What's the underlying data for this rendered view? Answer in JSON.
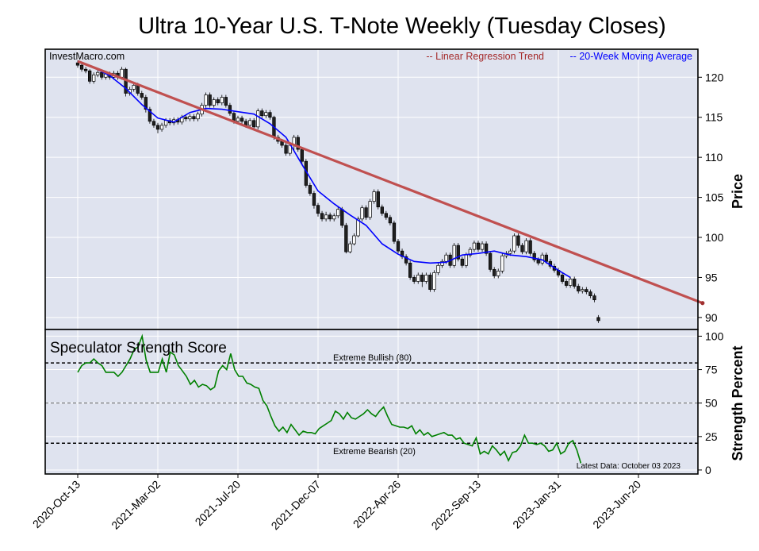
{
  "chart_data": [
    {
      "type": "candlestick",
      "title": "Ultra 10-Year U.S. T-Note Weekly (Tuesday Closes)",
      "watermark": "InvestMacro.com",
      "ylabel": "Price",
      "ylim": [
        88.5,
        123.5
      ],
      "yticks": [
        90,
        95,
        100,
        105,
        110,
        115,
        120
      ],
      "grid": true,
      "x_dates": [
        "2020-Oct-13",
        "2021-Mar-02",
        "2021-Jul-20",
        "2021-Dec-07",
        "2022-Apr-26",
        "2022-Sep-13",
        "2023-Jan-31",
        "2023-Jun-20"
      ],
      "legend": [
        {
          "label": "-- Linear Regression Trend",
          "color": "#a52a2a"
        },
        {
          "label": "-- 20-Week Moving Average",
          "color": "#0000ff"
        }
      ],
      "regression_trend": {
        "start": {
          "week": 0,
          "value": 122.0
        },
        "end": {
          "week": 156,
          "value": 91.8
        }
      },
      "moving_average": [
        [
          0,
          122.0
        ],
        [
          4,
          121.2
        ],
        [
          8,
          120.2
        ],
        [
          12,
          118.6
        ],
        [
          16,
          116.6
        ],
        [
          20,
          114.9
        ],
        [
          24,
          114.4
        ],
        [
          28,
          115.6
        ],
        [
          32,
          116.1
        ],
        [
          36,
          116.0
        ],
        [
          40,
          115.7
        ],
        [
          44,
          115.4
        ],
        [
          48,
          114.2
        ],
        [
          52,
          112.5
        ],
        [
          56,
          109.1
        ],
        [
          60,
          105.8
        ],
        [
          64,
          104.2
        ],
        [
          68,
          102.8
        ],
        [
          72,
          101.5
        ],
        [
          76,
          99.2
        ],
        [
          80,
          97.9
        ],
        [
          84,
          97.0
        ],
        [
          88,
          96.8
        ],
        [
          92,
          96.9
        ],
        [
          96,
          97.8
        ],
        [
          100,
          98.0
        ],
        [
          104,
          98.3
        ],
        [
          108,
          97.8
        ],
        [
          112,
          97.6
        ],
        [
          116,
          97.2
        ],
        [
          120,
          95.9
        ],
        [
          123,
          95.0
        ]
      ],
      "candles": [
        [
          0,
          121.8,
          121.5,
          122.1,
          121.2
        ],
        [
          1,
          121.5,
          121.0,
          121.8,
          120.7
        ],
        [
          2,
          121.0,
          120.8,
          121.3,
          120.5
        ],
        [
          3,
          120.8,
          119.5,
          121.0,
          119.2
        ],
        [
          4,
          119.5,
          120.3,
          120.6,
          119.2
        ],
        [
          5,
          120.3,
          120.6,
          120.9,
          120.0
        ],
        [
          6,
          120.6,
          120.0,
          120.9,
          119.7
        ],
        [
          7,
          120.0,
          120.4,
          120.7,
          119.7
        ],
        [
          8,
          120.4,
          120.0,
          120.7,
          119.7
        ],
        [
          9,
          120.0,
          120.5,
          120.8,
          119.7
        ],
        [
          10,
          120.5,
          120.0,
          120.8,
          119.7
        ],
        [
          11,
          120.0,
          121.0,
          121.3,
          119.7
        ],
        [
          12,
          121.0,
          118.0,
          121.2,
          117.6
        ],
        [
          13,
          118.0,
          118.5,
          118.8,
          117.7
        ],
        [
          14,
          118.5,
          119.0,
          119.3,
          118.2
        ],
        [
          15,
          119.0,
          118.0,
          119.3,
          117.7
        ],
        [
          16,
          118.0,
          117.5,
          118.3,
          117.2
        ],
        [
          17,
          117.5,
          116.0,
          117.8,
          115.6
        ],
        [
          18,
          116.0,
          114.5,
          116.3,
          114.2
        ],
        [
          19,
          114.5,
          114.0,
          114.8,
          113.7
        ],
        [
          20,
          114.0,
          113.5,
          114.3,
          113.0
        ],
        [
          21,
          113.5,
          114.0,
          114.3,
          113.2
        ],
        [
          22,
          114.0,
          114.6,
          114.9,
          113.7
        ],
        [
          23,
          114.6,
          114.3,
          114.9,
          114.0
        ],
        [
          24,
          114.3,
          114.7,
          115.0,
          114.0
        ],
        [
          25,
          114.7,
          114.4,
          115.0,
          114.1
        ],
        [
          26,
          114.4,
          115.0,
          115.3,
          114.1
        ],
        [
          27,
          115.0,
          114.8,
          115.3,
          114.5
        ],
        [
          28,
          114.8,
          115.1,
          115.4,
          114.5
        ],
        [
          29,
          115.1,
          114.8,
          115.4,
          114.5
        ],
        [
          30,
          114.8,
          115.4,
          115.7,
          114.5
        ],
        [
          31,
          115.4,
          116.5,
          116.8,
          115.1
        ],
        [
          32,
          116.5,
          117.8,
          118.1,
          116.2
        ],
        [
          33,
          117.8,
          116.5,
          118.1,
          116.2
        ],
        [
          34,
          116.5,
          117.2,
          117.5,
          116.2
        ],
        [
          35,
          117.2,
          116.8,
          117.5,
          116.5
        ],
        [
          36,
          116.8,
          117.5,
          117.8,
          116.5
        ],
        [
          37,
          117.5,
          116.5,
          117.8,
          116.2
        ],
        [
          38,
          116.5,
          115.5,
          116.8,
          115.2
        ],
        [
          39,
          115.5,
          114.5,
          115.8,
          114.2
        ],
        [
          40,
          114.5,
          114.9,
          115.2,
          114.2
        ],
        [
          41,
          114.9,
          114.5,
          115.2,
          114.2
        ],
        [
          42,
          114.5,
          114.0,
          114.8,
          113.7
        ],
        [
          43,
          114.0,
          114.6,
          114.9,
          113.7
        ],
        [
          44,
          114.6,
          113.8,
          114.9,
          113.5
        ],
        [
          45,
          113.8,
          115.8,
          116.1,
          113.5
        ],
        [
          46,
          115.8,
          115.2,
          116.1,
          114.9
        ],
        [
          47,
          115.2,
          115.6,
          115.9,
          114.9
        ],
        [
          48,
          115.6,
          115.0,
          115.9,
          114.7
        ],
        [
          49,
          115.0,
          112.5,
          115.2,
          112.2
        ],
        [
          50,
          112.5,
          112.0,
          112.8,
          111.7
        ],
        [
          51,
          112.0,
          111.5,
          112.3,
          111.2
        ],
        [
          52,
          111.5,
          110.5,
          111.8,
          110.2
        ],
        [
          53,
          110.5,
          111.5,
          111.8,
          110.2
        ],
        [
          54,
          111.5,
          112.5,
          112.8,
          110.8
        ],
        [
          55,
          112.5,
          111.0,
          112.8,
          110.7
        ],
        [
          56,
          111.0,
          109.5,
          111.3,
          109.0
        ],
        [
          57,
          109.5,
          106.5,
          109.8,
          106.2
        ],
        [
          58,
          106.5,
          105.5,
          106.8,
          105.2
        ],
        [
          59,
          105.5,
          104.0,
          105.8,
          103.6
        ],
        [
          60,
          104.0,
          103.0,
          104.3,
          102.6
        ],
        [
          61,
          103.0,
          102.3,
          103.3,
          102.0
        ],
        [
          62,
          102.3,
          102.8,
          103.2,
          102.0
        ],
        [
          63,
          102.8,
          102.3,
          103.1,
          102.0
        ],
        [
          64,
          102.3,
          102.7,
          103.0,
          102.0
        ],
        [
          65,
          102.7,
          103.5,
          103.8,
          102.4
        ],
        [
          66,
          103.5,
          101.5,
          103.8,
          101.2
        ],
        [
          67,
          101.5,
          98.2,
          101.8,
          98.0
        ],
        [
          68,
          98.2,
          99.2,
          99.5,
          98.0
        ],
        [
          69,
          99.2,
          100.2,
          100.5,
          99.0
        ],
        [
          70,
          100.2,
          102.3,
          102.6,
          100.0
        ],
        [
          71,
          102.3,
          103.7,
          104.0,
          102.0
        ],
        [
          72,
          103.7,
          102.5,
          104.0,
          102.2
        ],
        [
          73,
          102.5,
          104.5,
          104.8,
          102.2
        ],
        [
          74,
          104.5,
          105.7,
          106.0,
          104.2
        ],
        [
          75,
          105.7,
          103.8,
          106.0,
          103.5
        ],
        [
          76,
          103.8,
          103.0,
          104.1,
          102.7
        ],
        [
          77,
          103.0,
          102.5,
          103.3,
          102.2
        ],
        [
          78,
          102.5,
          101.8,
          102.8,
          101.5
        ],
        [
          79,
          101.8,
          99.5,
          102.1,
          99.2
        ],
        [
          80,
          99.5,
          98.3,
          99.8,
          98.0
        ],
        [
          81,
          98.3,
          97.6,
          98.6,
          97.3
        ],
        [
          82,
          97.6,
          96.8,
          97.9,
          96.5
        ],
        [
          83,
          96.8,
          95.0,
          97.1,
          94.7
        ],
        [
          84,
          95.0,
          94.5,
          95.3,
          94.2
        ],
        [
          85,
          94.5,
          95.3,
          95.6,
          94.2
        ],
        [
          86,
          95.3,
          94.5,
          95.6,
          93.8
        ],
        [
          87,
          94.5,
          95.3,
          95.6,
          94.2
        ],
        [
          88,
          95.3,
          93.5,
          95.6,
          93.2
        ],
        [
          89,
          93.5,
          95.6,
          95.9,
          93.2
        ],
        [
          90,
          95.6,
          96.5,
          96.8,
          95.3
        ],
        [
          91,
          96.5,
          97.0,
          97.3,
          96.2
        ],
        [
          92,
          97.0,
          97.8,
          98.1,
          96.7
        ],
        [
          93,
          97.8,
          96.5,
          98.1,
          96.2
        ],
        [
          94,
          96.5,
          99.0,
          99.3,
          96.2
        ],
        [
          95,
          99.0,
          97.3,
          99.3,
          97.0
        ],
        [
          96,
          97.3,
          96.5,
          97.6,
          96.2
        ],
        [
          97,
          96.5,
          97.8,
          98.1,
          96.2
        ],
        [
          98,
          97.8,
          98.5,
          98.8,
          97.5
        ],
        [
          99,
          98.5,
          99.3,
          99.6,
          98.2
        ],
        [
          100,
          99.3,
          98.5,
          99.6,
          98.2
        ],
        [
          101,
          98.5,
          99.2,
          99.5,
          98.2
        ],
        [
          102,
          99.2,
          98.0,
          99.5,
          97.7
        ],
        [
          103,
          98.0,
          96.0,
          98.3,
          95.7
        ],
        [
          104,
          96.0,
          95.2,
          96.3,
          94.9
        ],
        [
          105,
          95.2,
          95.8,
          96.1,
          94.9
        ],
        [
          106,
          95.8,
          97.7,
          98.0,
          95.5
        ],
        [
          107,
          97.7,
          98.0,
          98.3,
          97.4
        ],
        [
          108,
          98.0,
          98.3,
          98.6,
          97.7
        ],
        [
          109,
          98.3,
          100.2,
          100.5,
          98.0
        ],
        [
          110,
          100.2,
          99.0,
          100.5,
          98.7
        ],
        [
          111,
          99.0,
          98.2,
          99.3,
          97.9
        ],
        [
          112,
          98.2,
          99.6,
          99.9,
          97.9
        ],
        [
          113,
          99.6,
          98.0,
          99.9,
          97.7
        ],
        [
          114,
          98.0,
          97.2,
          98.3,
          96.9
        ],
        [
          115,
          97.2,
          96.8,
          97.5,
          96.5
        ],
        [
          116,
          96.8,
          97.8,
          98.1,
          96.5
        ],
        [
          117,
          97.8,
          97.0,
          98.1,
          96.7
        ],
        [
          118,
          97.0,
          96.4,
          97.3,
          96.1
        ],
        [
          119,
          96.4,
          95.9,
          96.7,
          95.6
        ],
        [
          120,
          95.9,
          95.3,
          96.2,
          95.0
        ],
        [
          121,
          95.3,
          94.5,
          95.6,
          94.2
        ],
        [
          122,
          94.5,
          94.0,
          94.8,
          93.7
        ],
        [
          123,
          94.0,
          94.8,
          95.1,
          93.7
        ],
        [
          124,
          94.8,
          93.9,
          95.1,
          93.6
        ],
        [
          125,
          93.9,
          93.3,
          94.2,
          93.0
        ],
        [
          126,
          93.3,
          93.5,
          93.8,
          93.0
        ],
        [
          127,
          93.5,
          93.2,
          93.8,
          92.9
        ],
        [
          128,
          93.2,
          92.7,
          93.5,
          92.4
        ],
        [
          129,
          92.7,
          92.2,
          93.0,
          91.9
        ],
        [
          130,
          90.0,
          89.6,
          90.3,
          89.3
        ]
      ]
    },
    {
      "type": "line",
      "title": "Speculator Strength Score",
      "ylabel": "Strength Percent",
      "ylim": [
        -3,
        105
      ],
      "yticks": [
        0,
        25,
        50,
        75,
        100
      ],
      "grid": true,
      "reference_lines": [
        {
          "label": "Extreme Bullish (80)",
          "value": 80
        },
        {
          "label": "50",
          "value": 50
        },
        {
          "label": "Extreme Bearish (20)",
          "value": 20
        }
      ],
      "footnote": "Latest Data: October 03 2023",
      "series": [
        {
          "name": "Speculator Strength",
          "color": "#008000",
          "values": [
            73,
            78,
            80,
            80,
            83,
            80,
            78,
            73,
            73,
            73,
            70,
            73,
            78,
            83,
            90,
            92,
            100,
            82,
            73,
            73,
            73,
            83,
            73,
            88,
            86,
            78,
            74,
            70,
            64,
            67,
            62,
            64,
            63,
            60,
            62,
            74,
            78,
            75,
            87,
            75,
            70,
            70,
            65,
            64,
            62,
            61,
            52,
            48,
            40,
            33,
            29,
            32,
            28,
            34,
            30,
            26,
            29,
            28,
            28,
            27,
            31,
            33,
            35,
            37,
            44,
            42,
            38,
            43,
            39,
            38,
            40,
            42,
            45,
            42,
            40,
            44,
            47,
            40,
            34,
            33,
            32,
            32,
            31,
            33,
            27,
            30,
            26,
            28,
            25,
            26,
            27,
            28,
            26,
            26,
            23,
            24,
            20,
            19,
            18,
            24,
            12,
            14,
            12,
            18,
            15,
            11,
            14,
            7,
            13,
            14,
            18,
            26,
            20,
            20,
            19,
            20,
            18,
            14,
            15,
            20,
            12,
            14,
            20,
            22,
            15,
            5
          ]
        }
      ]
    }
  ]
}
